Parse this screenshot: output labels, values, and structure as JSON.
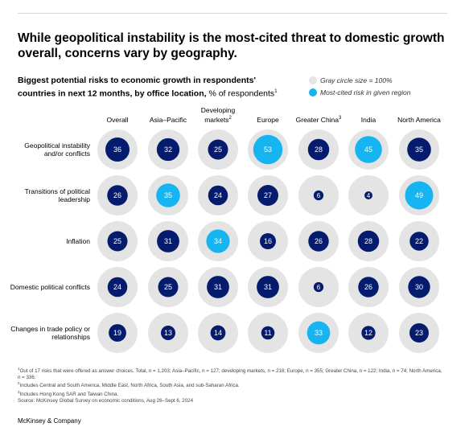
{
  "headline": "While geopolitical instability is the most-cited threat to domestic growth overall, concerns vary by geography.",
  "subtitle": {
    "bold": "Biggest potential risks to economic growth in respondents' countries in next 12 months, by office location,",
    "rest": " % of respondents",
    "sup": "1"
  },
  "legend": {
    "gray_label": "Gray circle size = 100%",
    "blue_label": "Most-cited risk in given region"
  },
  "columns": [
    {
      "label": "Overall",
      "sup": ""
    },
    {
      "label": "Asia–Pacific",
      "sup": ""
    },
    {
      "label": "Developing markets",
      "sup": "2"
    },
    {
      "label": "Europe",
      "sup": ""
    },
    {
      "label": "Greater China",
      "sup": "3"
    },
    {
      "label": "India",
      "sup": ""
    },
    {
      "label": "North America",
      "sup": ""
    }
  ],
  "chart_data": {
    "type": "bubble-matrix",
    "unit": "% of respondents",
    "rows": [
      "Geopolitical instability and/or conflicts",
      "Transitions of political leadership",
      "Inflation",
      "Domestic political conflicts",
      "Changes in trade policy or relationships"
    ],
    "columns": [
      "Overall",
      "Asia–Pacific",
      "Developing markets",
      "Europe",
      "Greater China",
      "India",
      "North America"
    ],
    "values": [
      [
        36,
        32,
        25,
        53,
        28,
        45,
        35
      ],
      [
        26,
        35,
        24,
        27,
        6,
        4,
        49
      ],
      [
        25,
        31,
        34,
        16,
        26,
        28,
        22
      ],
      [
        24,
        25,
        31,
        31,
        6,
        26,
        30
      ],
      [
        19,
        13,
        14,
        11,
        33,
        12,
        23
      ]
    ],
    "highlight": [
      [
        false,
        false,
        false,
        true,
        false,
        true,
        false
      ],
      [
        false,
        true,
        false,
        false,
        false,
        false,
        true
      ],
      [
        false,
        false,
        true,
        false,
        false,
        false,
        false
      ],
      [
        false,
        false,
        false,
        false,
        false,
        false,
        false
      ],
      [
        false,
        false,
        false,
        false,
        true,
        false,
        false
      ]
    ],
    "max_value": 100,
    "colors": {
      "background_circle": "#e4e4e4",
      "value_circle": "#051c6e",
      "highlight_circle": "#16b4f0",
      "value_text": "#ffffff"
    }
  },
  "footnotes": [
    {
      "sup": "1",
      "text": "Out of 17 risks that were offered as answer choices. Total, n = 1,203; Asia–Pacific, n = 127; developing markets, n = 218; Europe, n = 355; Greater China, n = 122; India, n = 74; North America, n = 336."
    },
    {
      "sup": "2",
      "text": "Includes Central and South America, Middle East, North Africa, South Asia, and sub-Saharan Africa."
    },
    {
      "sup": "3",
      "text": "Includes Hong Kong SAR and Taiwan China."
    },
    {
      "sup": "",
      "text": "Source: McKinsey Global Survey on economic conditions, Aug 26–Sept 6, 2024"
    }
  ],
  "brand": "McKinsey & Company"
}
